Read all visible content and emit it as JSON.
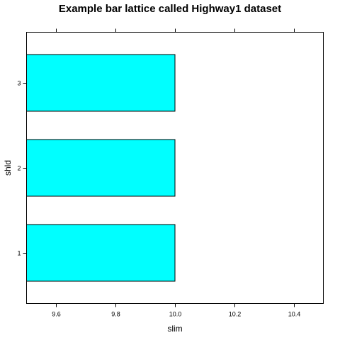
{
  "chart_data": {
    "type": "bar",
    "orientation": "horizontal",
    "title": "Example bar lattice called Highway1 dataset",
    "xlabel": "slim",
    "ylabel": "shld",
    "categories": [
      "1",
      "2",
      "3"
    ],
    "values": [
      10.0,
      10.0,
      10.0
    ],
    "xlim": [
      9.5,
      10.5
    ],
    "xticks": [
      9.6,
      9.8,
      10.0,
      10.2,
      10.4
    ],
    "xtick_labels": [
      "9.6",
      "9.8",
      "10.0",
      "10.2",
      "10.4"
    ],
    "bar_color": "#00ffff",
    "bar_border_color": "#000000",
    "grid": false
  }
}
